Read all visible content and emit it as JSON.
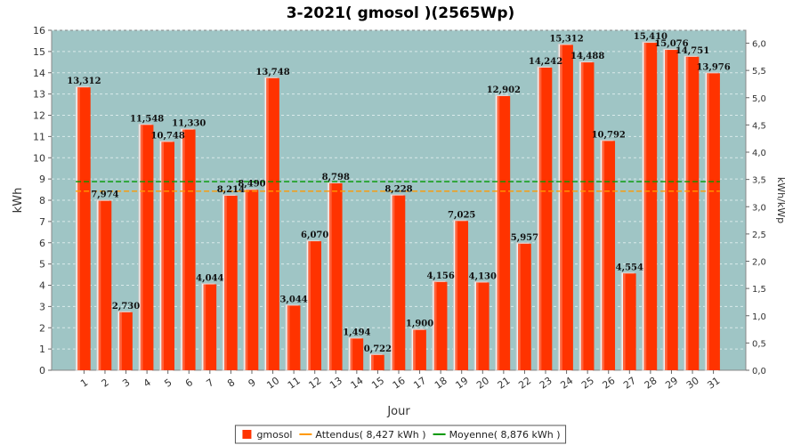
{
  "chart_data": {
    "type": "bar",
    "title": "3-2021( gmosol )(2565Wp)",
    "xlabel": "Jour",
    "ylabel": "kWh",
    "y2label": "kWh/kWp",
    "ylim": [
      0,
      16
    ],
    "yticks": [
      "0",
      "1",
      "2",
      "3",
      "4",
      "5",
      "6",
      "7",
      "8",
      "9",
      "10",
      "11",
      "12",
      "13",
      "14",
      "15",
      "16"
    ],
    "y2lim": [
      0,
      6.237
    ],
    "y2ticks": [
      "0,0",
      "0,5",
      "1,0",
      "1,5",
      "2,0",
      "2,5",
      "3,0",
      "3,5",
      "4,0",
      "4,5",
      "5,0",
      "5,5",
      "6,0"
    ],
    "y2tick_values": [
      0,
      0.5,
      1.0,
      1.5,
      2.0,
      2.5,
      3.0,
      3.5,
      4.0,
      4.5,
      5.0,
      5.5,
      6.0
    ],
    "grid": true,
    "legend_position": "bottom",
    "categories": [
      "1",
      "2",
      "3",
      "4",
      "5",
      "6",
      "7",
      "8",
      "9",
      "10",
      "11",
      "12",
      "13",
      "14",
      "15",
      "16",
      "17",
      "18",
      "19",
      "20",
      "21",
      "22",
      "23",
      "24",
      "25",
      "26",
      "27",
      "28",
      "29",
      "30",
      "31"
    ],
    "series": [
      {
        "name": "gmosol",
        "color": "#ff3300",
        "values": [
          13.312,
          7.974,
          2.73,
          11.548,
          10.748,
          11.33,
          4.044,
          8.214,
          8.49,
          13.748,
          3.044,
          6.07,
          8.798,
          1.494,
          0.722,
          8.228,
          1.9,
          4.156,
          7.025,
          4.13,
          12.902,
          5.957,
          14.242,
          15.312,
          14.488,
          10.792,
          4.554,
          15.41,
          15.076,
          14.751,
          13.976
        ],
        "labels": [
          "13,312",
          "7,974",
          "2,730",
          "11,548",
          "10,748",
          "11,330",
          "4,044",
          "8,214",
          "8,490",
          "13,748",
          "3,044",
          "6,070",
          "8,798",
          "1,494",
          "0,722",
          "8,228",
          "1,900",
          "4,156",
          "7,025",
          "4,130",
          "12,902",
          "5,957",
          "14,242",
          "15,312",
          "14,488",
          "10,792",
          "4,554",
          "15,410",
          "15,076",
          "14,751",
          "13,976"
        ]
      }
    ],
    "reference_lines": [
      {
        "name": "Attendus( 8,427 kWh )",
        "value": 8.427,
        "color": "#ff9900"
      },
      {
        "name": "Moyenne( 8,876 kWh )",
        "value": 8.876,
        "color": "#009900"
      }
    ],
    "colors": {
      "plot_bg": "#9fc5c5",
      "grid": "#d9eaea",
      "bar_shadow": "#c7c7c7"
    }
  }
}
